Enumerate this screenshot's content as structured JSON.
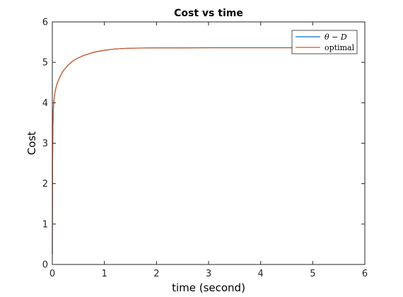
{
  "chart_data": {
    "type": "line",
    "title": "Cost vs time",
    "xlabel": "time (second)",
    "ylabel": "Cost",
    "xlim": [
      0,
      6
    ],
    "ylim": [
      0,
      6
    ],
    "xticks": [
      0,
      1,
      2,
      3,
      4,
      5,
      6
    ],
    "yticks": [
      0,
      1,
      2,
      3,
      4,
      5,
      6
    ],
    "grid": false,
    "legend_position": "top-right",
    "series": [
      {
        "name": "θ − D",
        "color": "#0072BD",
        "x": [
          0,
          0.005,
          0.01,
          0.02,
          0.03,
          0.05,
          0.07,
          0.1,
          0.15,
          0.2,
          0.3,
          0.4,
          0.5,
          0.6,
          0.7,
          0.8,
          1.0,
          1.2,
          1.4,
          1.6,
          1.8,
          2.0,
          2.5,
          3.0,
          3.5,
          4.0,
          4.5,
          5.0
        ],
        "y": [
          0.25,
          2.6,
          3.3,
          3.85,
          4.05,
          4.25,
          4.37,
          4.5,
          4.65,
          4.77,
          4.93,
          5.04,
          5.11,
          5.17,
          5.21,
          5.25,
          5.3,
          5.33,
          5.345,
          5.352,
          5.356,
          5.358,
          5.36,
          5.361,
          5.361,
          5.361,
          5.361,
          5.361
        ]
      },
      {
        "name": "optimal",
        "color": "#D95319",
        "x": [
          0,
          0.005,
          0.01,
          0.02,
          0.03,
          0.05,
          0.07,
          0.1,
          0.15,
          0.2,
          0.3,
          0.4,
          0.5,
          0.6,
          0.7,
          0.8,
          1.0,
          1.2,
          1.4,
          1.6,
          1.8,
          2.0,
          2.5,
          3.0,
          3.5,
          4.0,
          4.5,
          5.0
        ],
        "y": [
          0.25,
          2.6,
          3.3,
          3.85,
          4.05,
          4.25,
          4.37,
          4.5,
          4.65,
          4.77,
          4.93,
          5.04,
          5.11,
          5.17,
          5.21,
          5.25,
          5.3,
          5.33,
          5.345,
          5.352,
          5.356,
          5.358,
          5.36,
          5.361,
          5.361,
          5.361,
          5.361,
          5.361
        ]
      }
    ]
  }
}
